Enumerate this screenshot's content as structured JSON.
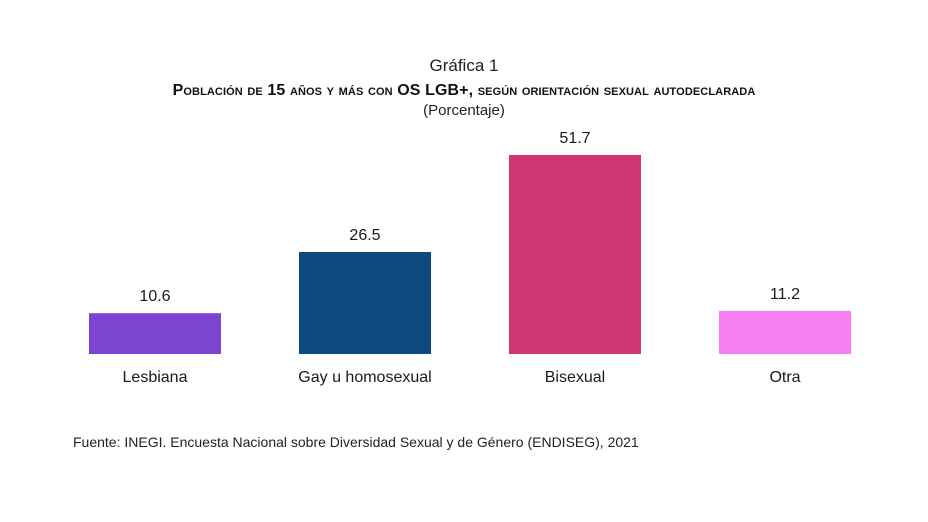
{
  "header": {
    "figure_number": "Gráfica 1",
    "title": "Población de 15 años y más con OS LGB+, según orientación sexual autodeclarada",
    "subtitle": "(Porcentaje)"
  },
  "chart_data": {
    "type": "bar",
    "title": "Población de 15 años y más con OS LGB+, según orientación sexual autodeclarada",
    "unit": "Porcentaje",
    "categories": [
      "Lesbiana",
      "Gay u homosexual",
      "Bisexual",
      "Otra"
    ],
    "values": [
      10.6,
      26.5,
      51.7,
      11.2
    ],
    "value_labels": [
      "10.6",
      "26.5",
      "51.7",
      "11.2"
    ],
    "colors": [
      "#7b44d1",
      "#0e4a7e",
      "#cf3570",
      "#f77ff2"
    ],
    "ylim": [
      0,
      51.7
    ],
    "grid": false,
    "legend": "none",
    "xlabel": "",
    "ylabel": ""
  },
  "footer": {
    "source": "Fuente: INEGI. Encuesta Nacional sobre Diversidad Sexual y de Género (ENDISEG), 2021"
  }
}
